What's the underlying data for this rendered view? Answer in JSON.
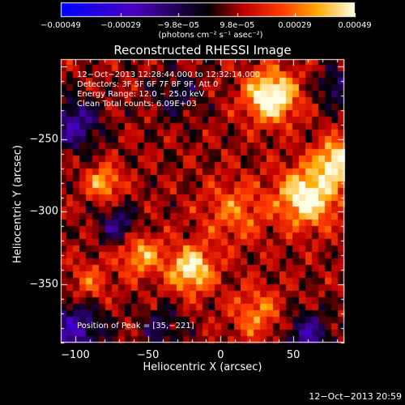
{
  "chart_data": {
    "type": "heatmap",
    "title": "Reconstructed RHESSI Image",
    "xlabel": "Heliocentric X (arcsec)",
    "ylabel": "Heliocentric Y (arcsec)",
    "xlim": [
      -110,
      85
    ],
    "ylim": [
      -390,
      -195
    ],
    "x_ticks": [
      {
        "value": -100,
        "label": "−100"
      },
      {
        "value": -50,
        "label": "−50"
      },
      {
        "value": 0,
        "label": "0"
      },
      {
        "value": 50,
        "label": "50"
      }
    ],
    "y_ticks": [
      {
        "value": -250,
        "label": "−250"
      },
      {
        "value": -300,
        "label": "−300"
      },
      {
        "value": -350,
        "label": "−350"
      }
    ],
    "colorbar": {
      "range": [
        -0.00049,
        0.00049
      ],
      "ticks": [
        {
          "value": -0.00049,
          "label": "−0.00049"
        },
        {
          "value": -0.00029,
          "label": "−0.00029"
        },
        {
          "value": -9.8e-05,
          "label": "−9.8e−05"
        },
        {
          "value": 9.8e-05,
          "label": "9.8e−05"
        },
        {
          "value": 0.00029,
          "label": "0.00029"
        },
        {
          "value": 0.00049,
          "label": "0.00049"
        }
      ],
      "units": "(photons cm⁻² s⁻¹ asec⁻²)"
    },
    "annotations": [
      "12−Oct−2013 12:28:44.000 to 12:32:14.000",
      "Detectors: 3F 5F 6F 7F 8F 9F, Att 0",
      "Energy Range: 12.0 − 25.0 keV",
      "Clean     Total counts: 6.09E+03"
    ],
    "peak_text": "Position of Peak = [35,−221]",
    "peak_position": [
      35,
      -221
    ],
    "timestamp": "12−Oct−2013 20:59",
    "sources": [
      {
        "x": 35,
        "y": -221,
        "amp": 0.00049,
        "sigma": 12
      },
      {
        "x": 60,
        "y": -290,
        "amp": 0.00045,
        "sigma": 14
      },
      {
        "x": 80,
        "y": -265,
        "amp": 0.0004,
        "sigma": 10
      },
      {
        "x": -20,
        "y": -340,
        "amp": 0.0004,
        "sigma": 11
      },
      {
        "x": -55,
        "y": -330,
        "amp": 0.00028,
        "sigma": 10
      },
      {
        "x": -80,
        "y": -280,
        "amp": 0.0003,
        "sigma": 8
      },
      {
        "x": 10,
        "y": -300,
        "amp": 0.0002,
        "sigma": 15
      },
      {
        "x": 25,
        "y": -370,
        "amp": 0.00022,
        "sigma": 12
      },
      {
        "x": -90,
        "y": -350,
        "amp": 0.00018,
        "sigma": 10
      },
      {
        "x": -100,
        "y": -380,
        "amp": -0.0003,
        "sigma": 14
      },
      {
        "x": -100,
        "y": -240,
        "amp": -0.0003,
        "sigma": 12
      },
      {
        "x": -70,
        "y": -310,
        "amp": -0.00025,
        "sigma": 9
      },
      {
        "x": 60,
        "y": -385,
        "amp": -0.00028,
        "sigma": 11
      },
      {
        "x": -40,
        "y": -380,
        "amp": -0.00018,
        "sigma": 10
      },
      {
        "x": 80,
        "y": -215,
        "amp": -0.00022,
        "sigma": 9
      },
      {
        "x": -30,
        "y": -220,
        "amp": -0.00015,
        "sigma": 12
      }
    ]
  }
}
